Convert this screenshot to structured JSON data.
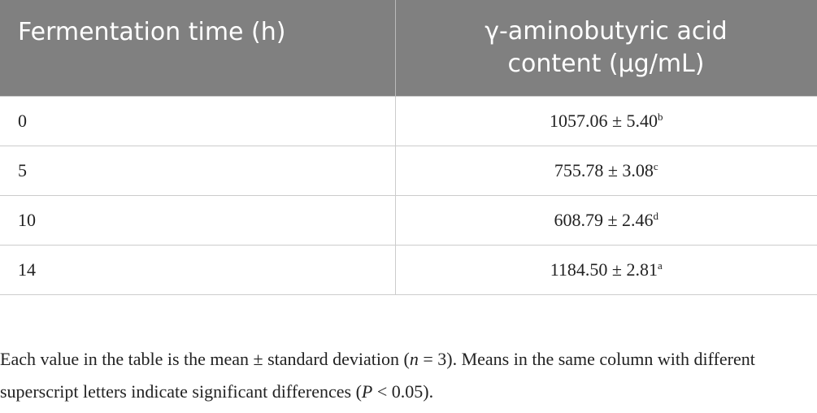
{
  "table": {
    "header": [
      "Fermentation time (h)",
      "γ-aminobutyric acid content (μg/mL)"
    ],
    "rows": [
      [
        "0",
        "1057.06 ± 5.40",
        "b"
      ],
      [
        "5",
        "755.78 ± 3.08",
        "c"
      ],
      [
        "10",
        "608.79 ± 2.46",
        "d"
      ],
      [
        "14",
        "1184.50 ± 2.81",
        "a"
      ]
    ]
  },
  "footnote": [
    "Each value in the table is the mean ± standard deviation (",
    "n",
    " = 3). Means in the same column with different superscript letters indicate significant differences (",
    "P",
    " < 0.05)."
  ]
}
